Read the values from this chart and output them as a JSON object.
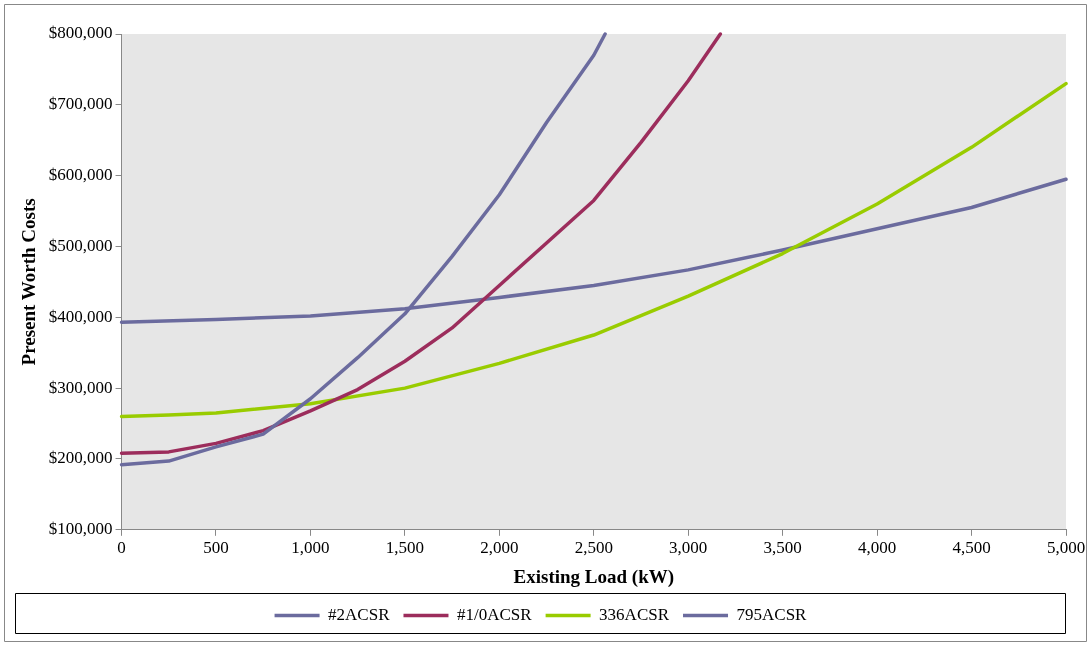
{
  "chart_data": {
    "type": "line",
    "xlabel": "Existing Load (kW)",
    "ylabel": "Present Worth Costs",
    "xlim": [
      0,
      5000
    ],
    "xticks": [
      {
        "value": 0,
        "label": "0"
      },
      {
        "value": 500,
        "label": "500"
      },
      {
        "value": 1000,
        "label": "1,000"
      },
      {
        "value": 1500,
        "label": "1,500"
      },
      {
        "value": 2000,
        "label": "2,000"
      },
      {
        "value": 2500,
        "label": "2,500"
      },
      {
        "value": 3000,
        "label": "3,000"
      },
      {
        "value": 3500,
        "label": "3,500"
      },
      {
        "value": 4000,
        "label": "4,000"
      },
      {
        "value": 4500,
        "label": "4,500"
      },
      {
        "value": 5000,
        "label": "5,000"
      }
    ],
    "ylim": [
      100000,
      800000
    ],
    "yticks": [
      {
        "value": 100000,
        "label": "$100,000"
      },
      {
        "value": 200000,
        "label": "$200,000"
      },
      {
        "value": 300000,
        "label": "$300,000"
      },
      {
        "value": 400000,
        "label": "$400,000"
      },
      {
        "value": 500000,
        "label": "$500,000"
      },
      {
        "value": 600000,
        "label": "$600,000"
      },
      {
        "value": 700000,
        "label": "$700,000"
      },
      {
        "value": 800000,
        "label": "$800,000"
      }
    ],
    "grid": false,
    "legend": "bottom",
    "marker": "none",
    "line_style": "solid",
    "series": [
      {
        "name": "#2ACSR",
        "color": "#6b6b9e",
        "x": [
          0,
          250,
          500,
          750,
          1000,
          1250,
          1500,
          1750,
          2000,
          2250,
          2500,
          2560
        ],
        "values": [
          192000,
          197000,
          217000,
          235000,
          285000,
          343000,
          405000,
          486000,
          573000,
          675000,
          770000,
          800000
        ]
      },
      {
        "name": "#1/0ACSR",
        "color": "#9c2d5c",
        "x": [
          0,
          250,
          500,
          750,
          1000,
          1250,
          1500,
          1750,
          2000,
          2250,
          2500,
          2750,
          3000,
          3170
        ],
        "values": [
          208000,
          210000,
          222000,
          240000,
          268000,
          298000,
          338000,
          385000,
          445000,
          505000,
          565000,
          647000,
          734000,
          800000
        ]
      },
      {
        "name": "336ACSR",
        "color": "#99cc00",
        "x": [
          0,
          250,
          500,
          1000,
          1500,
          2000,
          2500,
          3000,
          3500,
          4000,
          4500,
          5000
        ],
        "values": [
          260000,
          262000,
          265000,
          278000,
          300000,
          335000,
          375000,
          430000,
          490000,
          560000,
          640000,
          730000
        ]
      },
      {
        "name": "795ACSR",
        "color": "#6b6b9e",
        "x": [
          0,
          500,
          1000,
          1500,
          2000,
          2500,
          3000,
          3500,
          4000,
          4500,
          5000
        ],
        "values": [
          393000,
          397000,
          402000,
          412000,
          428000,
          445000,
          467000,
          495000,
          525000,
          555000,
          595000
        ]
      }
    ]
  }
}
